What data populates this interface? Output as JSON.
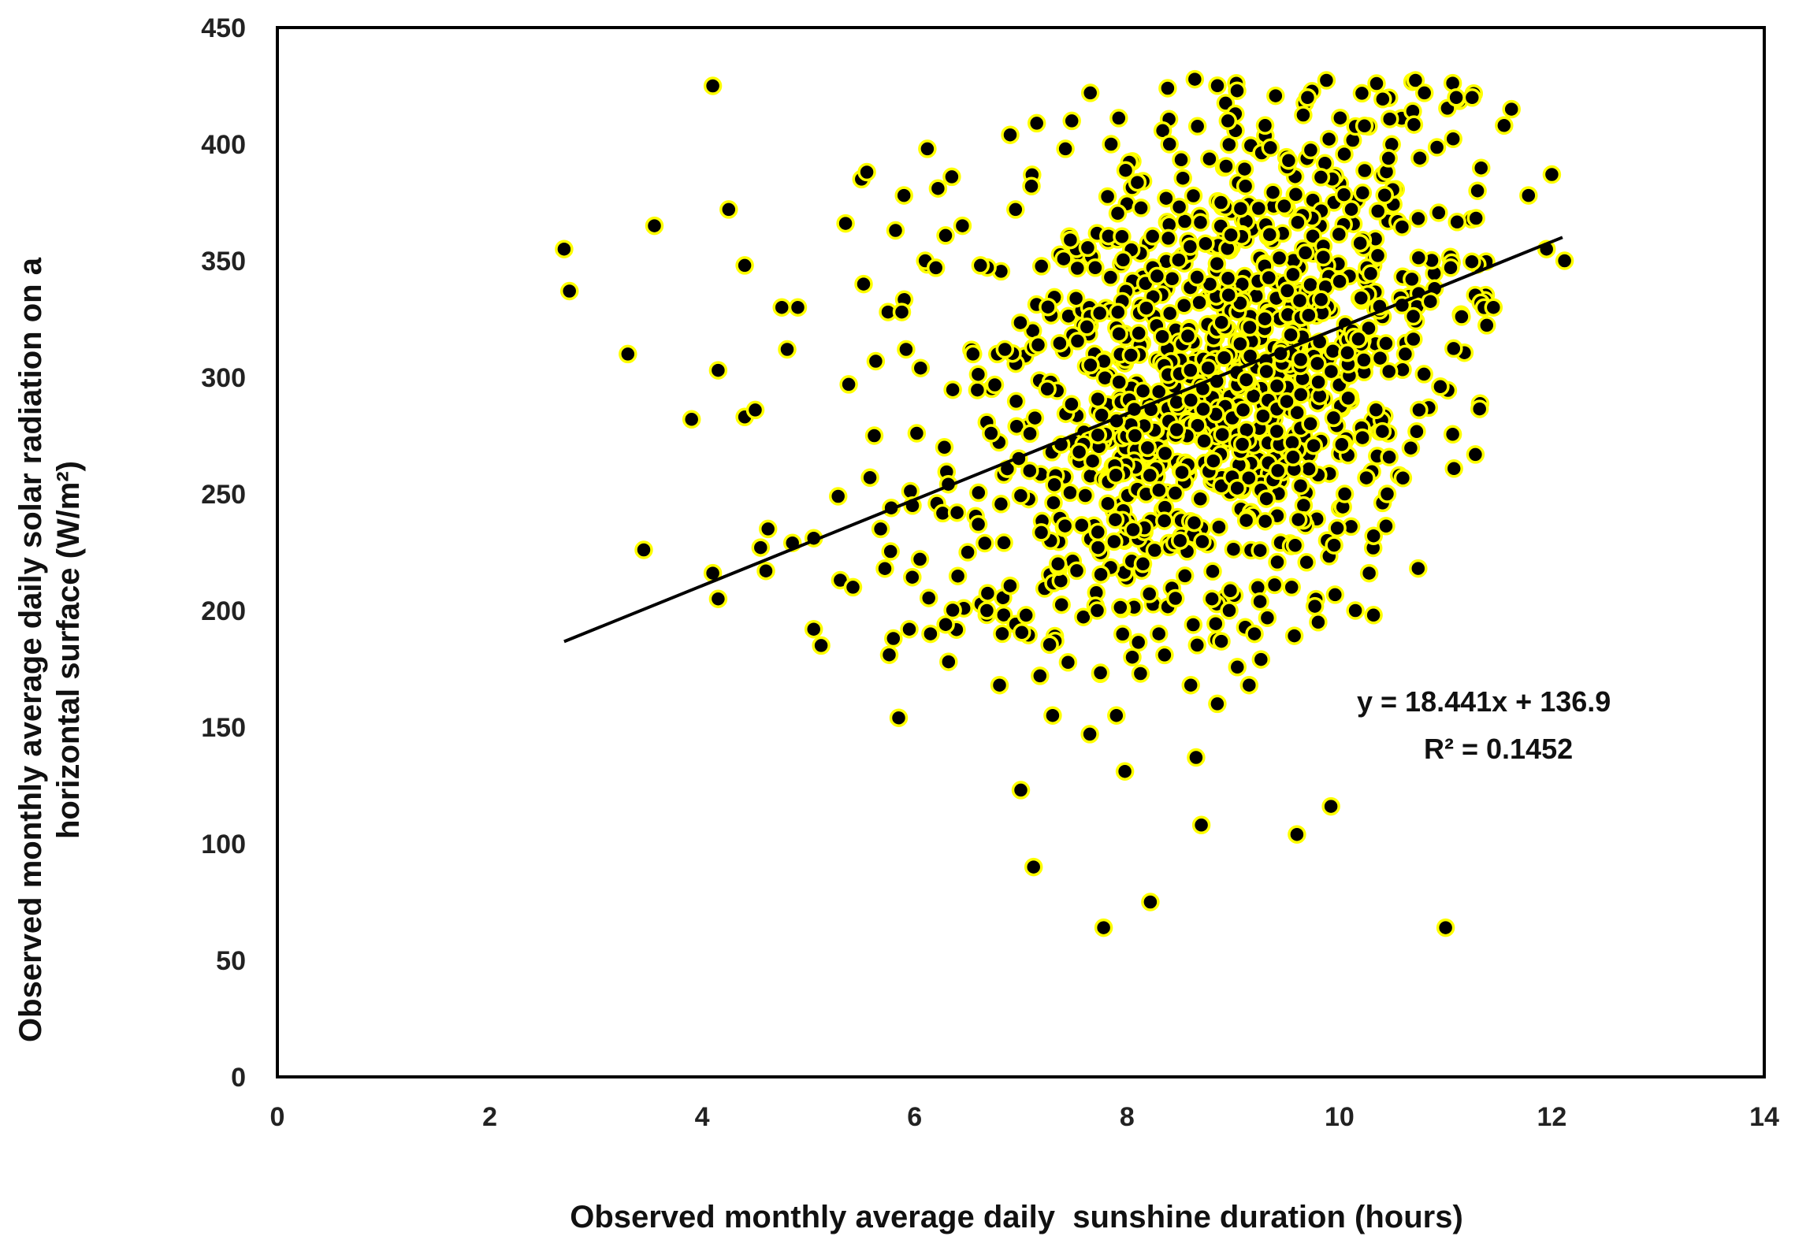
{
  "chart_data": {
    "type": "scatter",
    "title": "",
    "xlabel": "Observed monthly average daily  sunshine duration (hours)",
    "ylabel_line1": "Observed monthly average daily solar radiation on a",
    "ylabel_line2": "horizontal surface  (W/m²)",
    "xlim": [
      0,
      14
    ],
    "ylim": [
      0,
      450
    ],
    "xticks": [
      "0",
      "2",
      "4",
      "6",
      "8",
      "10",
      "12",
      "14"
    ],
    "yticks": [
      "0",
      "50",
      "100",
      "150",
      "200",
      "250",
      "300",
      "350",
      "400",
      "450"
    ],
    "grid": false,
    "trendline": {
      "slope": 18.441,
      "intercept": 136.9,
      "x_range": [
        2.7,
        12.1
      ],
      "equation_text": "y = 18.441x + 136.9",
      "r2_text": "R² = 0.1452"
    },
    "colors": {
      "marker_fill": "#000000",
      "marker_edge": "#ffff00",
      "line": "#000000",
      "frame": "#000000"
    },
    "outliers": [
      [
        2.7,
        355
      ],
      [
        2.75,
        337
      ],
      [
        3.3,
        310
      ],
      [
        3.45,
        226
      ],
      [
        3.55,
        365
      ],
      [
        3.9,
        282
      ],
      [
        4.1,
        425
      ],
      [
        4.1,
        216
      ],
      [
        4.15,
        205
      ],
      [
        4.15,
        303
      ],
      [
        4.25,
        372
      ],
      [
        4.4,
        348
      ],
      [
        4.4,
        283
      ],
      [
        4.5,
        286
      ],
      [
        4.55,
        227
      ],
      [
        4.6,
        217
      ],
      [
        4.62,
        235
      ],
      [
        4.75,
        330
      ],
      [
        4.8,
        312
      ],
      [
        4.85,
        229
      ],
      [
        4.9,
        330
      ],
      [
        5.05,
        231
      ],
      [
        5.05,
        192
      ],
      [
        5.12,
        185
      ],
      [
        5.28,
        249
      ],
      [
        5.3,
        213
      ],
      [
        5.35,
        366
      ],
      [
        5.38,
        297
      ],
      [
        5.42,
        210
      ],
      [
        5.5,
        385
      ],
      [
        5.52,
        340
      ],
      [
        5.55,
        388
      ],
      [
        5.58,
        257
      ],
      [
        5.62,
        275
      ],
      [
        5.68,
        235
      ],
      [
        5.72,
        218
      ],
      [
        5.75,
        328
      ],
      [
        5.8,
        188
      ],
      [
        5.82,
        363
      ],
      [
        5.85,
        154
      ],
      [
        5.88,
        328
      ],
      [
        5.9,
        378
      ],
      [
        5.92,
        312
      ],
      [
        5.95,
        192
      ],
      [
        5.98,
        245
      ],
      [
        6.02,
        276
      ],
      [
        6.05,
        222
      ],
      [
        6.1,
        350
      ],
      [
        6.12,
        398
      ],
      [
        6.15,
        190
      ],
      [
        6.2,
        347
      ],
      [
        6.22,
        381
      ],
      [
        6.28,
        270
      ],
      [
        6.32,
        178
      ],
      [
        6.35,
        386
      ],
      [
        6.4,
        242
      ],
      [
        6.45,
        365
      ],
      [
        6.5,
        225
      ],
      [
        6.55,
        310
      ],
      [
        6.6,
        237
      ],
      [
        6.62,
        348
      ],
      [
        6.68,
        200
      ],
      [
        6.72,
        276
      ],
      [
        6.78,
        310
      ],
      [
        6.8,
        168
      ],
      [
        6.85,
        312
      ],
      [
        6.9,
        404
      ],
      [
        6.95,
        372
      ],
      [
        7.0,
        123
      ],
      [
        7.05,
        198
      ],
      [
        7.1,
        382
      ],
      [
        7.12,
        90
      ],
      [
        7.15,
        409
      ],
      [
        7.18,
        172
      ],
      [
        7.25,
        295
      ],
      [
        7.3,
        155
      ],
      [
        7.35,
        220
      ],
      [
        7.42,
        398
      ],
      [
        7.48,
        410
      ],
      [
        7.55,
        268
      ],
      [
        7.65,
        147
      ],
      [
        7.72,
        200
      ],
      [
        7.78,
        64
      ],
      [
        7.85,
        400
      ],
      [
        7.9,
        155
      ],
      [
        7.98,
        131
      ],
      [
        8.05,
        180
      ],
      [
        8.15,
        220
      ],
      [
        8.22,
        75
      ],
      [
        8.3,
        190
      ],
      [
        8.4,
        400
      ],
      [
        8.5,
        230
      ],
      [
        8.6,
        168
      ],
      [
        8.65,
        137
      ],
      [
        8.7,
        108
      ],
      [
        8.8,
        205
      ],
      [
        8.85,
        160
      ],
      [
        8.95,
        410
      ],
      [
        9.15,
        168
      ],
      [
        9.2,
        190
      ],
      [
        9.3,
        408
      ],
      [
        9.42,
        260
      ],
      [
        9.55,
        210
      ],
      [
        9.6,
        104
      ],
      [
        9.7,
        420
      ],
      [
        9.8,
        195
      ],
      [
        9.92,
        116
      ],
      [
        9.95,
        228
      ],
      [
        10.05,
        250
      ],
      [
        10.15,
        200
      ],
      [
        10.28,
        216
      ],
      [
        10.35,
        426
      ],
      [
        10.45,
        250
      ],
      [
        10.62,
        310
      ],
      [
        10.75,
        286
      ],
      [
        10.8,
        422
      ],
      [
        10.95,
        296
      ],
      [
        11.0,
        64
      ],
      [
        11.1,
        420
      ],
      [
        11.15,
        326
      ],
      [
        11.25,
        420
      ],
      [
        11.3,
        380
      ],
      [
        11.45,
        330
      ],
      [
        11.55,
        408
      ],
      [
        11.62,
        415
      ],
      [
        11.78,
        378
      ],
      [
        11.95,
        355
      ],
      [
        12.0,
        387
      ],
      [
        12.12,
        350
      ]
    ]
  }
}
